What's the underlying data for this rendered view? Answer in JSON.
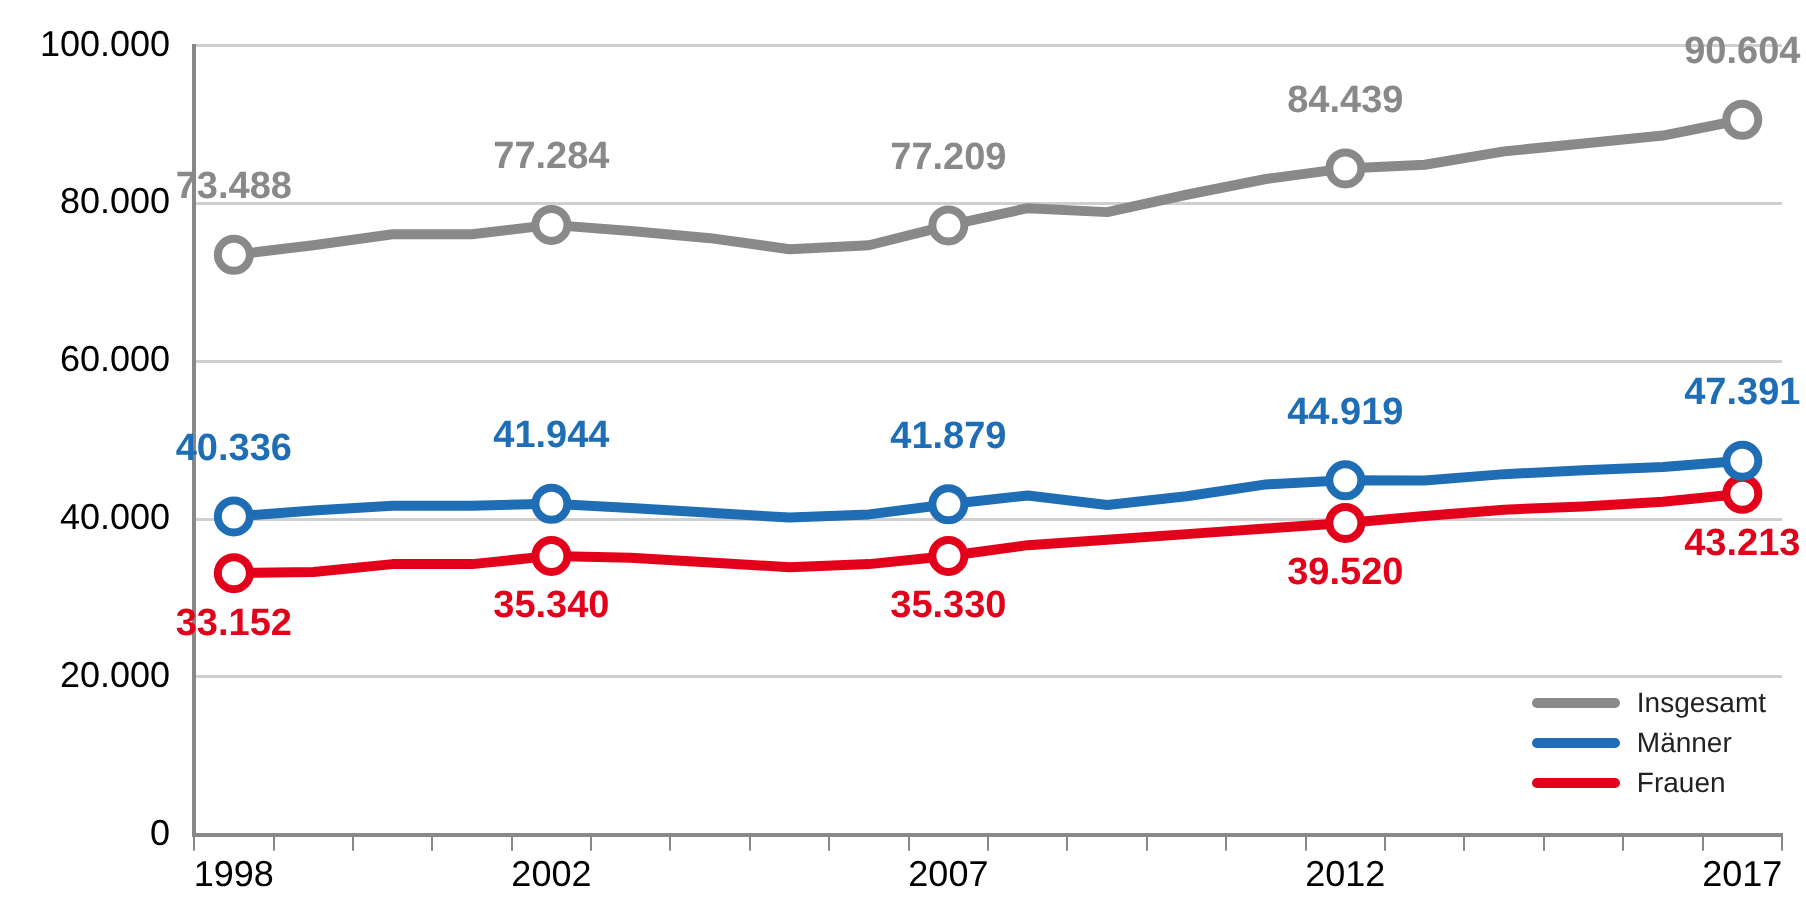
{
  "chart_data": {
    "type": "line",
    "categories": [
      "1998",
      null,
      null,
      null,
      "2002",
      null,
      null,
      null,
      null,
      "2007",
      null,
      null,
      null,
      null,
      "2012",
      null,
      null,
      null,
      null,
      "2017"
    ],
    "series": [
      {
        "name": "Insgesamt",
        "color": "#898989",
        "values": [
          73488,
          74700,
          76100,
          76100,
          77284,
          76500,
          75600,
          74200,
          74700,
          77209,
          79400,
          78900,
          81100,
          83100,
          84439,
          84900,
          86600,
          87600,
          88600,
          90604
        ],
        "value_labels": [
          "73.488",
          null,
          null,
          null,
          "77.284",
          null,
          null,
          null,
          null,
          "77.209",
          null,
          null,
          null,
          null,
          "84.439",
          null,
          null,
          null,
          null,
          "90.604"
        ]
      },
      {
        "name": "Männer",
        "color": "#1f6eb5",
        "values": [
          40336,
          41100,
          41700,
          41700,
          41944,
          41400,
          40800,
          40200,
          40600,
          41879,
          43000,
          41800,
          42900,
          44400,
          44919,
          44900,
          45700,
          46200,
          46600,
          47391
        ],
        "value_labels": [
          "40.336",
          null,
          null,
          null,
          "41.944",
          null,
          null,
          null,
          null,
          "41.879",
          null,
          null,
          null,
          null,
          "44.919",
          null,
          null,
          null,
          null,
          "47.391"
        ]
      },
      {
        "name": "Frauen",
        "color": "#e2001a",
        "values": [
          33152,
          33300,
          34300,
          34300,
          35340,
          35100,
          34500,
          33900,
          34300,
          35330,
          36700,
          37400,
          38100,
          38800,
          39520,
          40400,
          41200,
          41600,
          42200,
          43213
        ],
        "value_labels": [
          "33.152",
          null,
          null,
          null,
          "35.340",
          null,
          null,
          null,
          null,
          "35.330",
          null,
          null,
          null,
          null,
          "39.520",
          null,
          null,
          null,
          null,
          "43.213"
        ]
      }
    ],
    "ylim": [
      0,
      100000
    ],
    "yticks": [
      {
        "value": 0,
        "label": "0"
      },
      {
        "value": 20000,
        "label": "20.000"
      },
      {
        "value": 40000,
        "label": "40.000"
      },
      {
        "value": 60000,
        "label": "60.000"
      },
      {
        "value": 80000,
        "label": "80.000"
      },
      {
        "value": 100000,
        "label": "100.000"
      }
    ],
    "grid": "y",
    "legend": "bottom right",
    "line_style": "solid"
  }
}
